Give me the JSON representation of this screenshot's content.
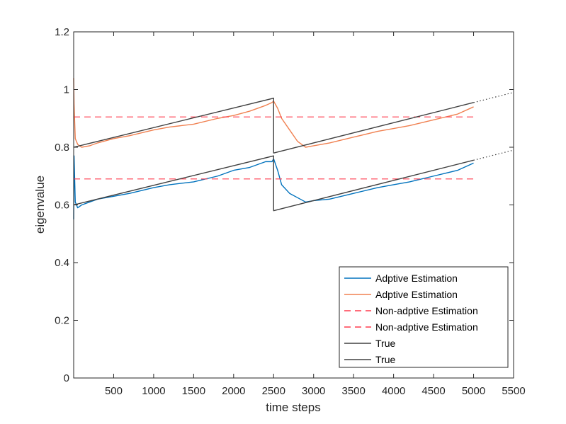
{
  "chart_data": {
    "type": "line",
    "title": "",
    "xlabel": "time steps",
    "ylabel": "eigenvalue",
    "xlim": [
      0,
      5500
    ],
    "ylim": [
      0,
      1.2
    ],
    "xticks": [
      500,
      1000,
      1500,
      2000,
      2500,
      3000,
      3500,
      4000,
      4500,
      5000,
      5500
    ],
    "xtick_labels": [
      "500",
      "1000",
      "1500",
      "2000",
      "2500",
      "3000",
      "3500",
      "4000",
      "4500",
      "5000",
      "5500"
    ],
    "yticks": [
      0,
      0.2,
      0.4,
      0.6,
      0.8,
      1,
      1.2
    ],
    "ytick_labels": [
      "0",
      "0.2",
      "0.4",
      "0.6",
      "0.8",
      "1",
      "1.2"
    ],
    "grid": false,
    "legend_position": "bottom-right",
    "series": [
      {
        "name": "Adptive Estimation",
        "color": "#0072BD",
        "style": "solid",
        "x": [
          0,
          5,
          20,
          50,
          100,
          200,
          300,
          500,
          700,
          1000,
          1200,
          1500,
          1800,
          2000,
          2200,
          2400,
          2480,
          2500,
          2550,
          2600,
          2700,
          2800,
          2900,
          3000,
          3200,
          3500,
          3800,
          4000,
          4200,
          4500,
          4800,
          5000
        ],
        "y": [
          0.55,
          0.77,
          0.61,
          0.59,
          0.6,
          0.61,
          0.62,
          0.63,
          0.64,
          0.66,
          0.67,
          0.68,
          0.7,
          0.72,
          0.73,
          0.75,
          0.75,
          0.76,
          0.72,
          0.67,
          0.64,
          0.625,
          0.61,
          0.615,
          0.62,
          0.64,
          0.66,
          0.67,
          0.68,
          0.7,
          0.72,
          0.745
        ]
      },
      {
        "name": "Adptive Estimation",
        "color": "#F08050",
        "style": "solid",
        "x": [
          0,
          5,
          20,
          50,
          100,
          200,
          300,
          500,
          700,
          1000,
          1200,
          1500,
          1800,
          2000,
          2200,
          2400,
          2480,
          2500,
          2550,
          2600,
          2700,
          2800,
          2900,
          3000,
          3200,
          3500,
          3800,
          4000,
          4200,
          4500,
          4800,
          5000
        ],
        "y": [
          1.04,
          0.95,
          0.83,
          0.81,
          0.8,
          0.805,
          0.815,
          0.83,
          0.84,
          0.86,
          0.87,
          0.88,
          0.9,
          0.91,
          0.925,
          0.945,
          0.955,
          0.96,
          0.935,
          0.9,
          0.86,
          0.82,
          0.8,
          0.805,
          0.815,
          0.835,
          0.855,
          0.865,
          0.875,
          0.895,
          0.915,
          0.94
        ]
      },
      {
        "name": "Non-adptive Estimation",
        "color": "#FF3B4F",
        "style": "dashed",
        "x": [
          0,
          5000
        ],
        "y": [
          0.69,
          0.69
        ]
      },
      {
        "name": "Non-adptive Estimation",
        "color": "#FF3B4F",
        "style": "dashed",
        "x": [
          0,
          5000
        ],
        "y": [
          0.905,
          0.905
        ]
      },
      {
        "name": "True",
        "color": "#404040",
        "style": "solid",
        "x": [
          0,
          2500,
          2500,
          5000
        ],
        "y": [
          0.6,
          0.77,
          0.58,
          0.755
        ]
      },
      {
        "name": "True",
        "color": "#404040",
        "style": "solid",
        "x": [
          0,
          2500,
          2500,
          5000
        ],
        "y": [
          0.8,
          0.97,
          0.78,
          0.955
        ]
      }
    ],
    "extensions": [
      {
        "color": "#404040",
        "style": "dotted",
        "x": [
          5000,
          5500
        ],
        "y": [
          0.755,
          0.79
        ]
      },
      {
        "color": "#404040",
        "style": "dotted",
        "x": [
          5000,
          5500
        ],
        "y": [
          0.955,
          0.99
        ]
      }
    ]
  }
}
